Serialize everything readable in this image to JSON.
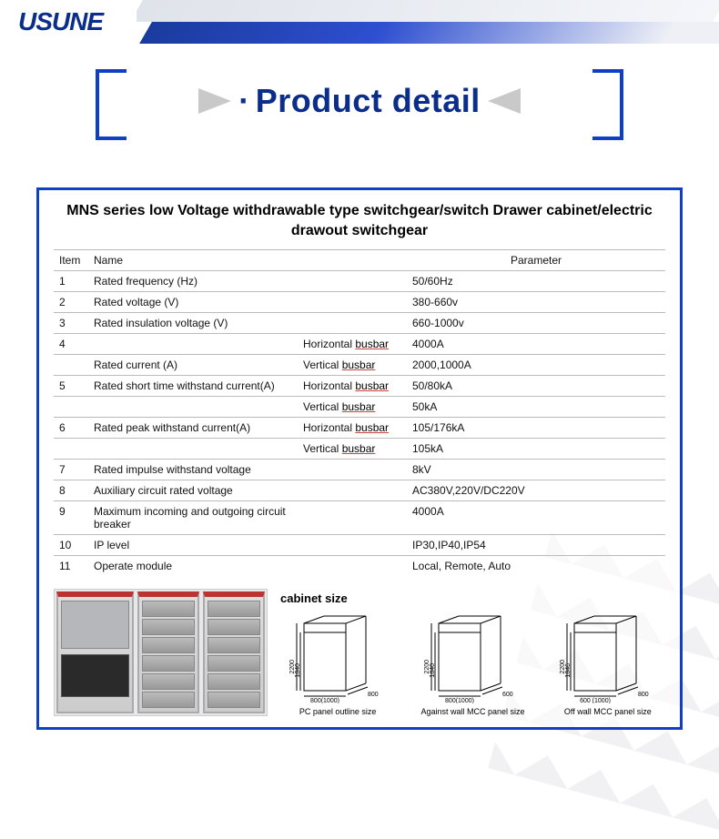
{
  "logo_text": "USUNE",
  "banner_title": "Product detail",
  "spec_title": "MNS series low Voltage withdrawable type switchgear/switch Drawer cabinet/electric drawout switchgear",
  "columns": {
    "item": "Item",
    "name": "Name",
    "parameter": "Parameter"
  },
  "rows": [
    {
      "item": "1",
      "name": "Rated frequency (Hz)",
      "sub": "",
      "param": "50/60Hz"
    },
    {
      "item": "2",
      "name": "Rated voltage (V)",
      "sub": "",
      "param": "380-660v"
    },
    {
      "item": "3",
      "name": "Rated insulation voltage (V)",
      "sub": "",
      "param": "660-1000v"
    },
    {
      "item": "4",
      "name": "",
      "sub": "Horizontal busbar",
      "param": "4000A"
    },
    {
      "item": "",
      "name": "Rated current (A)",
      "sub": "Vertical busbar",
      "param": "2000,1000A"
    },
    {
      "item": "5",
      "name": "Rated short time withstand current(A)",
      "sub": "Horizontal busbar",
      "param": "50/80kA"
    },
    {
      "item": "",
      "name": "",
      "sub": "Vertical busbar",
      "param": "50kA"
    },
    {
      "item": "6",
      "name": "Rated peak withstand current(A)",
      "sub": "Horizontal busbar",
      "param": "105/176kA"
    },
    {
      "item": "",
      "name": "",
      "sub": "Vertical busbar",
      "param": "105kA"
    },
    {
      "item": "7",
      "name": "Rated impulse withstand voltage",
      "sub": "",
      "param": "8kV"
    },
    {
      "item": "8",
      "name": "Auxiliary circuit rated voltage",
      "sub": "",
      "param": "AC380V,220V/DC220V"
    },
    {
      "item": "9",
      "name": "Maximum incoming and outgoing circuit breaker",
      "sub": "",
      "param": "4000A"
    },
    {
      "item": "10",
      "name": "IP level",
      "sub": "",
      "param": "IP30,IP40,IP54"
    },
    {
      "item": "11",
      "name": "Operate module",
      "sub": "",
      "param": "Local, Remote, Auto"
    }
  ],
  "cabinet_size_label": "cabinet  size",
  "diagrams": [
    {
      "caption": "PC panel outline size",
      "w_label": "800(1000)",
      "h_label": "2200",
      "h2": "1840",
      "d_label": "800"
    },
    {
      "caption": "Against wall MCC panel size",
      "w_label": "800(1000)",
      "h_label": "2200",
      "h2": "1840",
      "d_label": "600"
    },
    {
      "caption": "Off wall MCC panel size",
      "w_label": "600\n(1000)",
      "h_label": "2200",
      "h2": "1846",
      "d_label": "800"
    }
  ],
  "colors": {
    "brand_blue": "#0a2e8a",
    "banner_blue": "#0e3fc4",
    "arrow_gray": "#c9c9c9"
  }
}
